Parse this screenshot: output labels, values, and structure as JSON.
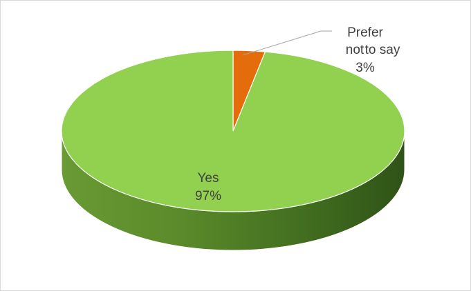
{
  "chart_data": {
    "type": "pie",
    "style": "3d",
    "categories": [
      "Yes",
      "Prefer not to say"
    ],
    "values": [
      97,
      3
    ],
    "colors": [
      "#92d050",
      "#e46c0a"
    ],
    "labels": [
      {
        "lines": [
          "Yes",
          "97%"
        ]
      },
      {
        "lines": [
          "Prefer",
          "not",
          "to say",
          "3%"
        ]
      }
    ]
  }
}
